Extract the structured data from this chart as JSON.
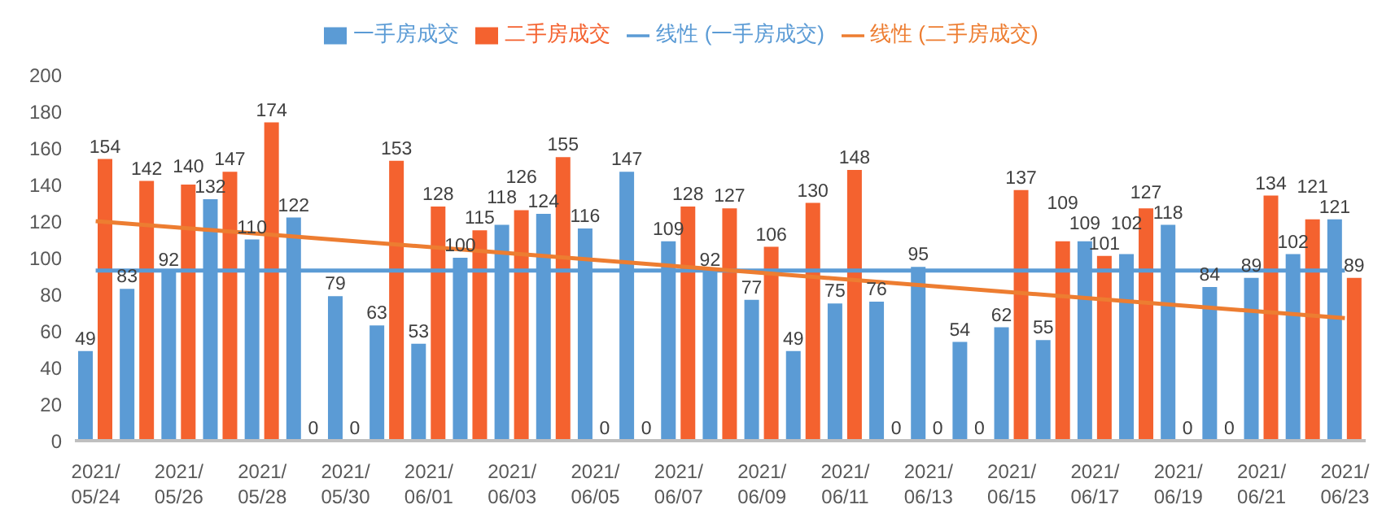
{
  "chart_data": {
    "type": "bar",
    "categories": [
      "2021/05/24",
      null,
      "2021/05/26",
      null,
      "2021/05/28",
      null,
      "2021/05/30",
      null,
      "2021/06/01",
      null,
      "2021/06/03",
      null,
      "2021/06/05",
      null,
      "2021/06/07",
      null,
      "2021/06/09",
      null,
      "2021/06/11",
      null,
      "2021/06/13",
      null,
      "2021/06/15",
      null,
      "2021/06/17",
      null,
      "2021/06/19",
      null,
      "2021/06/21",
      null,
      "2021/06/23"
    ],
    "series": [
      {
        "name": "一手房成交",
        "color": "#5b9bd5",
        "values": [
          49,
          83,
          92,
          132,
          110,
          122,
          79,
          63,
          53,
          100,
          118,
          124,
          116,
          147,
          109,
          92,
          77,
          49,
          75,
          76,
          95,
          54,
          62,
          55,
          109,
          102,
          118,
          84,
          89,
          102,
          121
        ],
        "value_labels": [
          "49",
          "83",
          "92",
          "132",
          "110",
          "122",
          "79",
          "63",
          "53",
          "100",
          "118",
          "124",
          "116",
          "147",
          "109",
          "92",
          "77",
          "49",
          "75",
          "76",
          "95",
          "54",
          "62",
          "55",
          "109",
          "102",
          "118",
          "84",
          "89",
          "102",
          "121"
        ]
      },
      {
        "name": "二手房成交",
        "color": "#f4622f",
        "values": [
          154,
          142,
          140,
          147,
          174,
          0,
          0,
          153,
          128,
          115,
          126,
          155,
          0,
          0,
          128,
          127,
          106,
          130,
          148,
          0,
          0,
          0,
          137,
          109,
          101,
          127,
          0,
          0,
          134,
          121,
          89
        ],
        "value_labels": [
          "154",
          "142",
          "140",
          "147",
          "174",
          "0",
          "0",
          "153",
          "128",
          "115",
          "126",
          "155",
          "0",
          "0",
          "128",
          "127",
          "106",
          "130",
          "148",
          "0",
          "0",
          "0",
          "137",
          "109",
          "101",
          "127",
          "0",
          "0",
          "134",
          "121",
          "89"
        ]
      },
      {
        "name": "线性 (一手房成交)",
        "type": "line",
        "color": "#5b9bd5",
        "x": [
          "2021/05/24",
          "2021/06/23"
        ],
        "values": [
          93,
          93
        ]
      },
      {
        "name": "线性 (二手房成交)",
        "type": "line",
        "color": "#ed7d31",
        "x": [
          "2021/05/24",
          "2021/06/23"
        ],
        "values": [
          120,
          67
        ]
      }
    ],
    "ylim": [
      0,
      200
    ],
    "yticks": [
      0,
      20,
      40,
      60,
      80,
      100,
      120,
      140,
      160,
      180,
      200
    ],
    "legend": "top",
    "grid": false
  }
}
